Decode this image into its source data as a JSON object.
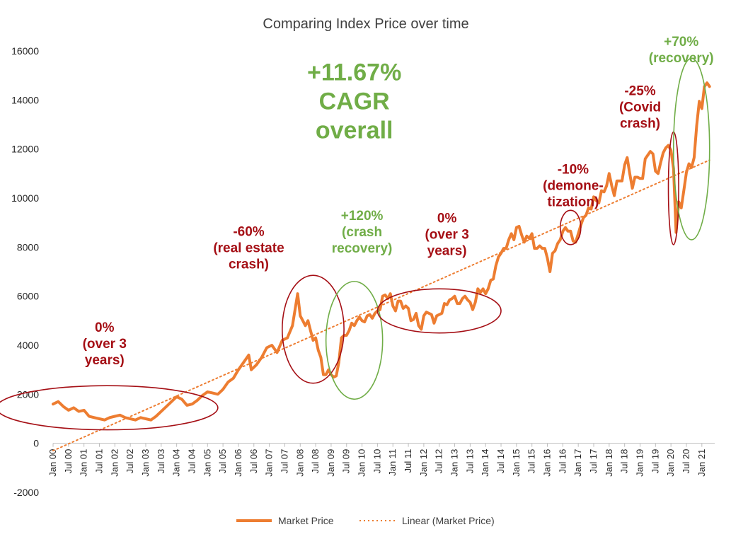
{
  "chart_data": {
    "type": "line",
    "title": "Comparing Index Price over time",
    "xlabel": "",
    "ylabel": "",
    "ylim": [
      -2000,
      16000
    ],
    "yticks": [
      -2000,
      0,
      2000,
      4000,
      6000,
      8000,
      10000,
      12000,
      14000,
      16000
    ],
    "xlim": [
      "Jan 00",
      "Jun 21"
    ],
    "xticks": [
      "Jan 00",
      "Jul 00",
      "Jan 01",
      "Jul 01",
      "Jan 02",
      "Jul 02",
      "Jan 03",
      "Jul 03",
      "Jan 04",
      "Jul 04",
      "Jan 05",
      "Jul 05",
      "Jan 06",
      "Jul 06",
      "Jan 07",
      "Jul 07",
      "Jan 08",
      "Jul 08",
      "Jan 09",
      "Jul 09",
      "Jan 10",
      "Jul 10",
      "Jan 11",
      "Jul 11",
      "Jan 12",
      "Jul 12",
      "Jan 13",
      "Jul 13",
      "Jan 14",
      "Jul 14",
      "Jan 15",
      "Jul 15",
      "Jan 16",
      "Jul 16",
      "Jan 17",
      "Jul 17",
      "Jan 18",
      "Jul 18",
      "Jan 19",
      "Jul 19",
      "Jan 20",
      "Jul 20",
      "Jan 21"
    ],
    "grid": false,
    "legend_placement": "bottom",
    "colors": {
      "market": "#ED7D31",
      "trend": "#ED7D31",
      "red": "#A50F15",
      "green": "#70AD47",
      "axis": "#BFBFBF"
    },
    "series": [
      {
        "name": "Market Price",
        "style": "solid",
        "points": [
          [
            "Jan 00",
            1600
          ],
          [
            "Mar 00",
            1700
          ],
          [
            "May 00",
            1500
          ],
          [
            "Jul 00",
            1350
          ],
          [
            "Sep 00",
            1450
          ],
          [
            "Nov 00",
            1300
          ],
          [
            "Jan 01",
            1350
          ],
          [
            "Mar 01",
            1100
          ],
          [
            "May 01",
            1050
          ],
          [
            "Jul 01",
            1000
          ],
          [
            "Sep 01",
            950
          ],
          [
            "Nov 01",
            1050
          ],
          [
            "Jan 02",
            1100
          ],
          [
            "Mar 02",
            1150
          ],
          [
            "May 02",
            1050
          ],
          [
            "Jul 02",
            1000
          ],
          [
            "Sep 02",
            950
          ],
          [
            "Nov 02",
            1050
          ],
          [
            "Jan 03",
            1000
          ],
          [
            "Mar 03",
            950
          ],
          [
            "May 03",
            1100
          ],
          [
            "Jul 03",
            1300
          ],
          [
            "Sep 03",
            1500
          ],
          [
            "Nov 03",
            1700
          ],
          [
            "Jan 04",
            1900
          ],
          [
            "Mar 04",
            1800
          ],
          [
            "May 04",
            1550
          ],
          [
            "Jul 04",
            1600
          ],
          [
            "Sep 04",
            1750
          ],
          [
            "Nov 04",
            1950
          ],
          [
            "Jan 05",
            2100
          ],
          [
            "Mar 05",
            2050
          ],
          [
            "May 05",
            2000
          ],
          [
            "Jul 05",
            2200
          ],
          [
            "Sep 05",
            2500
          ],
          [
            "Nov 05",
            2650
          ],
          [
            "Jan 06",
            3000
          ],
          [
            "Mar 06",
            3300
          ],
          [
            "May 06",
            3600
          ],
          [
            "Jun 06",
            3000
          ],
          [
            "Aug 06",
            3200
          ],
          [
            "Oct 06",
            3500
          ],
          [
            "Dec 06",
            3900
          ],
          [
            "Feb 07",
            4000
          ],
          [
            "Apr 07",
            3700
          ],
          [
            "Jun 07",
            4200
          ],
          [
            "Aug 07",
            4300
          ],
          [
            "Oct 07",
            4800
          ],
          [
            "Dec 07",
            6100
          ],
          [
            "Jan 08",
            5200
          ],
          [
            "Feb 08",
            5000
          ],
          [
            "Mar 08",
            4800
          ],
          [
            "Apr 08",
            5000
          ],
          [
            "May 08",
            4600
          ],
          [
            "Jun 08",
            4200
          ],
          [
            "Jul 08",
            4300
          ],
          [
            "Aug 08",
            3800
          ],
          [
            "Sep 08",
            3500
          ],
          [
            "Oct 08",
            2800
          ],
          [
            "Nov 08",
            2800
          ],
          [
            "Dec 08",
            3000
          ],
          [
            "Jan 09",
            2800
          ],
          [
            "Feb 09",
            2700
          ],
          [
            "Mar 09",
            2750
          ],
          [
            "Apr 09",
            3300
          ],
          [
            "May 09",
            4300
          ],
          [
            "Jun 09",
            4400
          ],
          [
            "Jul 09",
            4400
          ],
          [
            "Aug 09",
            4600
          ],
          [
            "Sep 09",
            4900
          ],
          [
            "Oct 09",
            4800
          ],
          [
            "Nov 09",
            5000
          ],
          [
            "Dec 09",
            5150
          ],
          [
            "Jan 10",
            5000
          ],
          [
            "Feb 10",
            4950
          ],
          [
            "Mar 10",
            5200
          ],
          [
            "Apr 10",
            5250
          ],
          [
            "May 10",
            5100
          ],
          [
            "Jun 10",
            5300
          ],
          [
            "Jul 10",
            5400
          ],
          [
            "Aug 10",
            5450
          ],
          [
            "Sep 10",
            6000
          ],
          [
            "Oct 10",
            6050
          ],
          [
            "Nov 10",
            5900
          ],
          [
            "Dec 10",
            6100
          ],
          [
            "Jan 11",
            5600
          ],
          [
            "Feb 11",
            5400
          ],
          [
            "Mar 11",
            5800
          ],
          [
            "Apr 11",
            5800
          ],
          [
            "May 11",
            5500
          ],
          [
            "Jun 11",
            5600
          ],
          [
            "Jul 11",
            5500
          ],
          [
            "Aug 11",
            5000
          ],
          [
            "Sep 11",
            5050
          ],
          [
            "Oct 11",
            5300
          ],
          [
            "Nov 11",
            4800
          ],
          [
            "Dec 11",
            4650
          ],
          [
            "Jan 12",
            5200
          ],
          [
            "Feb 12",
            5350
          ],
          [
            "Mar 12",
            5300
          ],
          [
            "Apr 12",
            5250
          ],
          [
            "May 12",
            4900
          ],
          [
            "Jun 12",
            5200
          ],
          [
            "Jul 12",
            5250
          ],
          [
            "Aug 12",
            5300
          ],
          [
            "Sep 12",
            5700
          ],
          [
            "Oct 12",
            5650
          ],
          [
            "Nov 12",
            5850
          ],
          [
            "Dec 12",
            5900
          ],
          [
            "Jan 13",
            6000
          ],
          [
            "Feb 13",
            5700
          ],
          [
            "Mar 13",
            5700
          ],
          [
            "Apr 13",
            5900
          ],
          [
            "May 13",
            6000
          ],
          [
            "Jun 13",
            5850
          ],
          [
            "Jul 13",
            5750
          ],
          [
            "Aug 13",
            5450
          ],
          [
            "Sep 13",
            5750
          ],
          [
            "Oct 13",
            6300
          ],
          [
            "Nov 13",
            6150
          ],
          [
            "Dec 13",
            6300
          ],
          [
            "Jan 14",
            6100
          ],
          [
            "Feb 14",
            6300
          ],
          [
            "Mar 14",
            6650
          ],
          [
            "Apr 14",
            6700
          ],
          [
            "May 14",
            7250
          ],
          [
            "Jun 14",
            7600
          ],
          [
            "Jul 14",
            7750
          ],
          [
            "Aug 14",
            7950
          ],
          [
            "Sep 14",
            7950
          ],
          [
            "Oct 14",
            8300
          ],
          [
            "Nov 14",
            8550
          ],
          [
            "Dec 14",
            8300
          ],
          [
            "Jan 15",
            8800
          ],
          [
            "Feb 15",
            8850
          ],
          [
            "Mar 15",
            8500
          ],
          [
            "Apr 15",
            8200
          ],
          [
            "May 15",
            8450
          ],
          [
            "Jun 15",
            8350
          ],
          [
            "Jul 15",
            8550
          ],
          [
            "Aug 15",
            7950
          ],
          [
            "Sep 15",
            7950
          ],
          [
            "Oct 15",
            8050
          ],
          [
            "Nov 15",
            7950
          ],
          [
            "Dec 15",
            7950
          ],
          [
            "Jan 16",
            7550
          ],
          [
            "Feb 16",
            7000
          ],
          [
            "Mar 16",
            7750
          ],
          [
            "Apr 16",
            7850
          ],
          [
            "May 16",
            8150
          ],
          [
            "Jun 16",
            8300
          ],
          [
            "Jul 16",
            8650
          ],
          [
            "Aug 16",
            8800
          ],
          [
            "Sep 16",
            8650
          ],
          [
            "Oct 16",
            8650
          ],
          [
            "Nov 16",
            8250
          ],
          [
            "Dec 16",
            8200
          ],
          [
            "Jan 17",
            8550
          ],
          [
            "Feb 17",
            8900
          ],
          [
            "Mar 17",
            9200
          ],
          [
            "Apr 17",
            9300
          ],
          [
            "May 17",
            9600
          ],
          [
            "Jun 17",
            9550
          ],
          [
            "Jul 17",
            10050
          ],
          [
            "Aug 17",
            9900
          ],
          [
            "Sep 17",
            9800
          ],
          [
            "Oct 17",
            10300
          ],
          [
            "Nov 17",
            10250
          ],
          [
            "Dec 17",
            10500
          ],
          [
            "Jan 18",
            11000
          ],
          [
            "Feb 18",
            10500
          ],
          [
            "Mar 18",
            10100
          ],
          [
            "Apr 18",
            10700
          ],
          [
            "May 18",
            10700
          ],
          [
            "Jun 18",
            10700
          ],
          [
            "Jul 18",
            11350
          ],
          [
            "Aug 18",
            11650
          ],
          [
            "Sep 18",
            11000
          ],
          [
            "Oct 18",
            10400
          ],
          [
            "Nov 18",
            10850
          ],
          [
            "Dec 18",
            10850
          ],
          [
            "Jan 19",
            10800
          ],
          [
            "Feb 19",
            10800
          ],
          [
            "Mar 19",
            11600
          ],
          [
            "Apr 19",
            11750
          ],
          [
            "May 19",
            11900
          ],
          [
            "Jun 19",
            11800
          ],
          [
            "Jul 19",
            11100
          ],
          [
            "Aug 19",
            11000
          ],
          [
            "Sep 19",
            11450
          ],
          [
            "Oct 19",
            11850
          ],
          [
            "Nov 19",
            12050
          ],
          [
            "Dec 19",
            12150
          ],
          [
            "Jan 20",
            11950
          ],
          [
            "Feb 20",
            11200
          ],
          [
            "Mar 20",
            8600
          ],
          [
            "Apr 20",
            9850
          ],
          [
            "May 20",
            9600
          ],
          [
            "Jun 20",
            10300
          ],
          [
            "Jul 20",
            11050
          ],
          [
            "Aug 20",
            11400
          ],
          [
            "Sep 20",
            11250
          ],
          [
            "Oct 20",
            11650
          ],
          [
            "Nov 20",
            12950
          ],
          [
            "Dec 20",
            13950
          ],
          [
            "Jan 21",
            13650
          ],
          [
            "Feb 21",
            14550
          ],
          [
            "Mar 21",
            14700
          ],
          [
            "Apr 21",
            14550
          ]
        ]
      },
      {
        "name": "Linear (Market Price)",
        "style": "dotted",
        "points": [
          [
            "Jan 00",
            -300
          ],
          [
            "Apr 21",
            11550
          ]
        ]
      }
    ],
    "annotations": [
      {
        "lines": [
          "0%",
          "(over 3",
          "years)"
        ],
        "color": "red",
        "anchor": [
          "Sep 01",
          4550
        ]
      },
      {
        "lines": [
          "-60%",
          "(real estate",
          "crash)"
        ],
        "color": "red",
        "anchor": [
          "May 06",
          8450
        ]
      },
      {
        "lines": [
          "+120%",
          "(crash",
          "recovery)"
        ],
        "color": "green",
        "anchor": [
          "Jan 10",
          9100
        ]
      },
      {
        "lines": [
          "0%",
          "(over 3",
          "years)"
        ],
        "color": "red",
        "anchor": [
          "Oct 12",
          9000
        ]
      },
      {
        "lines": [
          "-10%",
          "(demone-",
          "tization)"
        ],
        "color": "red",
        "anchor": [
          "Nov 16",
          11000
        ]
      },
      {
        "lines": [
          "-25%",
          "(Covid",
          "crash)"
        ],
        "color": "red",
        "anchor": [
          "Jan 19",
          14200
        ]
      },
      {
        "lines": [
          "+70%",
          "(recovery)"
        ],
        "color": "green",
        "anchor": [
          "May 20",
          16200
        ]
      },
      {
        "lines": [
          "+11.67%",
          "CAGR",
          "overall"
        ],
        "color": "green",
        "size": "big",
        "anchor": [
          "Oct 09",
          14800
        ]
      }
    ],
    "highlight_ellipses": [
      {
        "color": "red",
        "center": [
          "Oct 01",
          1450
        ],
        "rx_months": 43,
        "ry": 900,
        "tilt_deg": 0
      },
      {
        "color": "red",
        "center": [
          "Jun 08",
          4650
        ],
        "rx_months": 12,
        "ry": 2200,
        "tilt_deg": 0
      },
      {
        "color": "green",
        "center": [
          "Oct 09",
          4200
        ],
        "rx_months": 11,
        "ry": 2400,
        "tilt_deg": 0
      },
      {
        "color": "red",
        "center": [
          "Jul 12",
          5400
        ],
        "rx_months": 24,
        "ry": 900,
        "tilt_deg": 0
      },
      {
        "color": "red",
        "center": [
          "Oct 16",
          8800
        ],
        "rx_months": 4,
        "ry": 700,
        "tilt_deg": 0
      },
      {
        "color": "red",
        "center": [
          "Feb 20",
          10400
        ],
        "rx_months": 2,
        "ry": 2300,
        "tilt_deg": 0
      },
      {
        "color": "green",
        "center": [
          "Sep 20",
          12000
        ],
        "rx_months": 7,
        "ry": 3700,
        "tilt_deg": 0
      }
    ]
  }
}
